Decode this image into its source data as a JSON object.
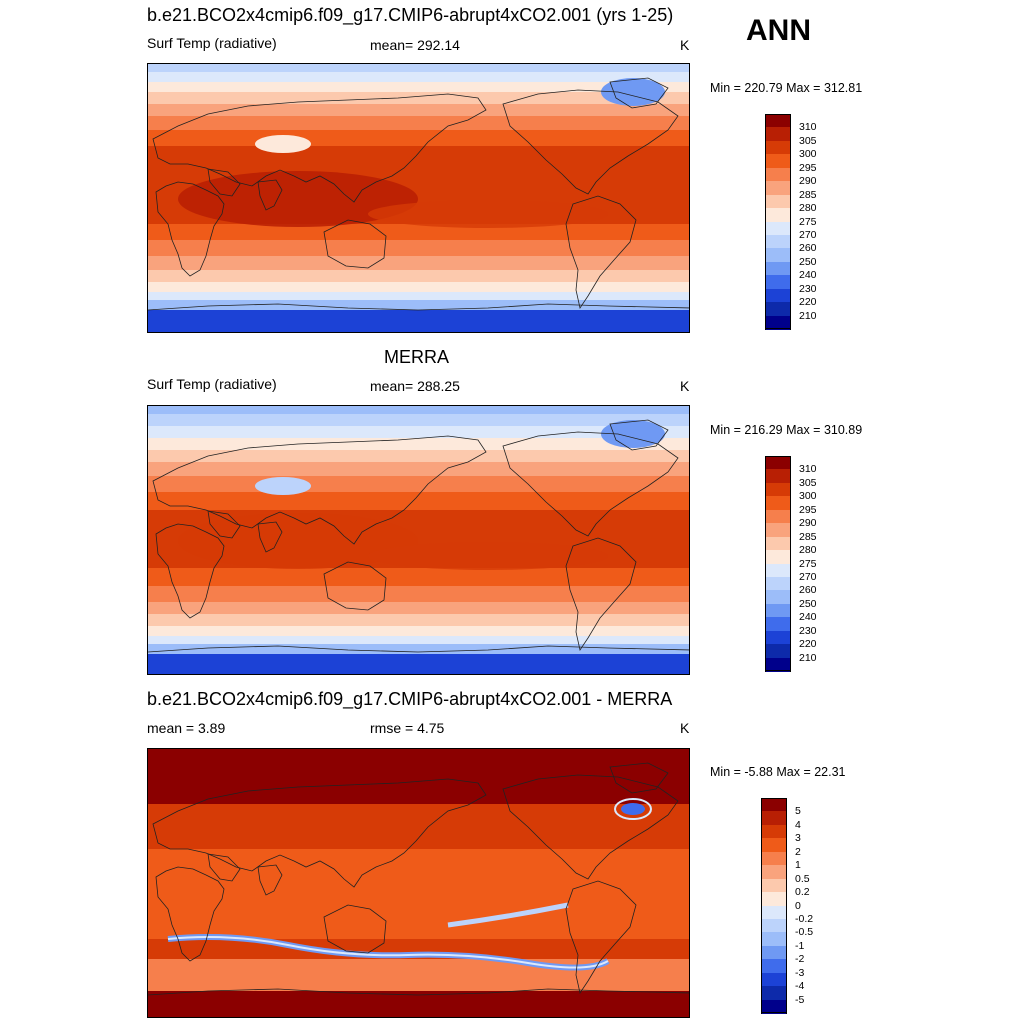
{
  "season": "ANN",
  "panels": [
    {
      "title": "b.e21.BCO2x4cmip6.f09_g17.CMIP6-abrupt4xCO2.001 (yrs 1-25)",
      "left_label": "Surf Temp (radiative)",
      "center_label": "mean= 292.14",
      "units": "K",
      "minmax": "Min = 220.79 Max = 312.81",
      "map_type": "absolute"
    },
    {
      "title": "MERRA",
      "left_label": "Surf Temp (radiative)",
      "center_label": "mean= 288.25",
      "units": "K",
      "minmax": "Min = 216.29 Max = 310.89",
      "map_type": "absolute-obs"
    },
    {
      "title": "b.e21.BCO2x4cmip6.f09_g17.CMIP6-abrupt4xCO2.001 - MERRA",
      "left_label": "mean =   3.89",
      "center_label": "rmse =   4.75",
      "units": "K",
      "minmax": "Min =  -5.88 Max =  22.31",
      "map_type": "difference"
    }
  ],
  "colorbar_abs": {
    "labels": [
      "310",
      "305",
      "300",
      "295",
      "290",
      "285",
      "280",
      "275",
      "270",
      "260",
      "250",
      "240",
      "230",
      "220",
      "210"
    ],
    "colors": [
      "#8b0000",
      "#b81f04",
      "#d63b06",
      "#ef5b19",
      "#f67f4c",
      "#f9a37d",
      "#fcc9ad",
      "#fde9db",
      "#dce8fb",
      "#bcd3fb",
      "#9cbdf9",
      "#6f99f3",
      "#3f6cec",
      "#1c42d6",
      "#0d2aaa",
      "#00008b"
    ]
  },
  "colorbar_diff": {
    "labels": [
      "5",
      "4",
      "3",
      "2",
      "1",
      "0.5",
      "0.2",
      "0",
      "-0.2",
      "-0.5",
      "-1",
      "-2",
      "-3",
      "-4",
      "-5"
    ],
    "colors": [
      "#8b0000",
      "#b81f04",
      "#d63b06",
      "#ef5b19",
      "#f67f4c",
      "#f9a37d",
      "#fcc9ad",
      "#fde9db",
      "#dce8fb",
      "#bcd3fb",
      "#9cbdf9",
      "#6f99f3",
      "#3f6cec",
      "#1c42d6",
      "#0d2aaa",
      "#00008b"
    ]
  }
}
